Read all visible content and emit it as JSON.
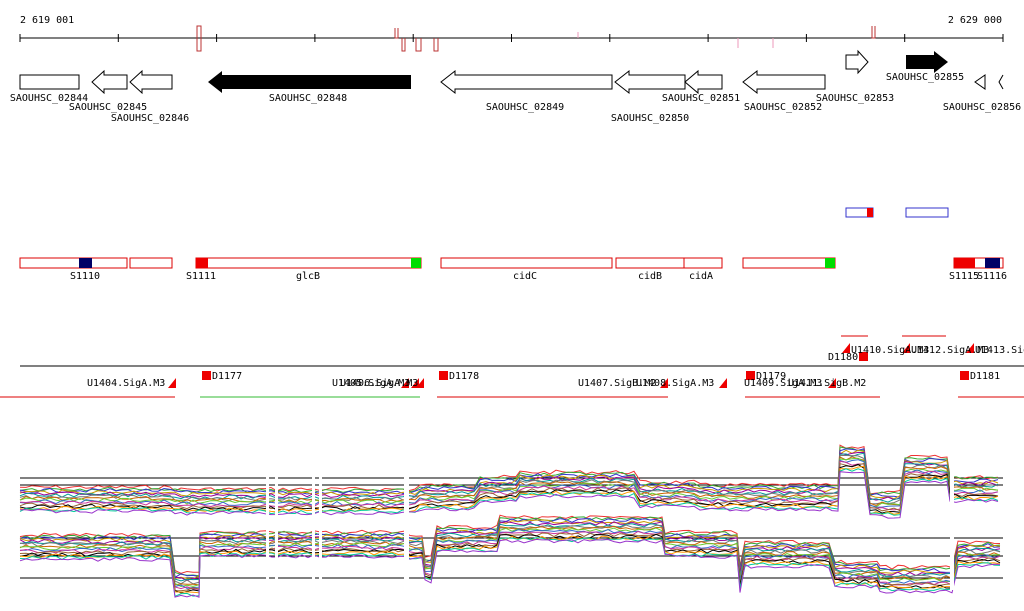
{
  "coordinates": {
    "start": "2 619 001",
    "end": "2 629 000"
  },
  "genes": [
    "SAOUHSC_02844",
    "SAOUHSC_02845",
    "SAOUHSC_02846",
    "SAOUHSC_02848",
    "SAOUHSC_02849",
    "SAOUHSC_02850",
    "SAOUHSC_02851",
    "SAOUHSC_02852",
    "SAOUHSC_02853",
    "SAOUHSC_02855",
    "SAOUHSC_02856"
  ],
  "features": [
    "S1110",
    "S1111",
    "glcB",
    "cidC",
    "cidB",
    "cidA",
    "S1115",
    "S1116"
  ],
  "sites": [
    "U1404.SigA.M3",
    "D1177",
    "U1405.SigA.M3",
    "U1406.SigA.M3",
    "D1178",
    "U1407.SigB.M2",
    "U1408.SigA.M3",
    "D1179",
    "U1409.SigA.M3",
    "U1411.SigB.M2",
    "D1180",
    "U1410.SigA.M3",
    "U1412.SigA.M3",
    "U1413.Sig",
    "D1181"
  ]
}
